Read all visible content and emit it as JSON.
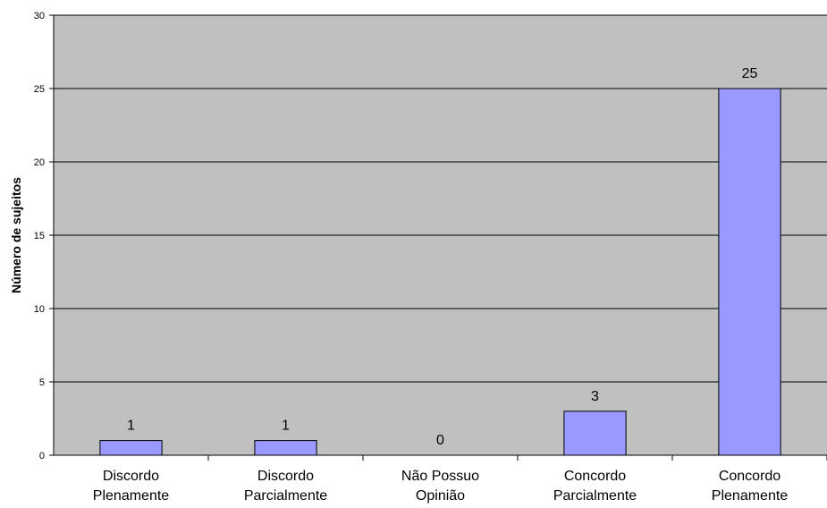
{
  "chart_data": {
    "type": "bar",
    "categories": [
      [
        "Discordo",
        "Plenamente"
      ],
      [
        "Discordo",
        "Parcialmente"
      ],
      [
        "Não Possuo",
        "Opinião"
      ],
      [
        "Concordo",
        "Parcialmente"
      ],
      [
        "Concordo",
        "Plenamente"
      ]
    ],
    "values": [
      1,
      1,
      0,
      3,
      25
    ],
    "data_labels": [
      "1",
      "1",
      "0",
      "3",
      "25"
    ],
    "ylabel": "Número de sujeitos",
    "ylim": [
      0,
      30
    ],
    "yticks": [
      0,
      5,
      10,
      15,
      20,
      25,
      30
    ],
    "grid": true,
    "colors": {
      "plot_bg": "#c0c0c0",
      "bar_fill": "#9999ff",
      "bar_stroke": "#000000",
      "grid": "#000000"
    }
  }
}
